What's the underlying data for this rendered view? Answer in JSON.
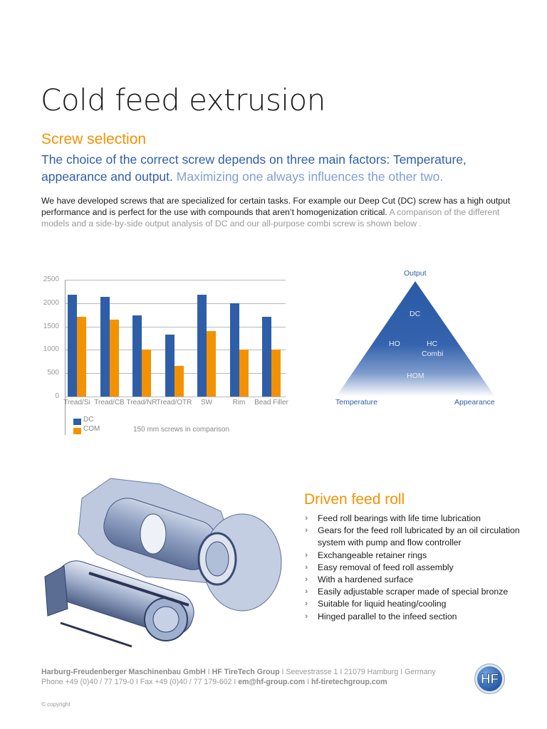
{
  "page": {
    "title": "Cold feed extrusion",
    "subtitle": "Screw selection",
    "lead_strong": "The choice of the correct screw depends on three main factors: Temperature, appearance and output.",
    "lead_light": "Maximizing one always influences the other two.",
    "body_dark": "We have developed screws that are specialized for certain tasks. For example our Deep Cut (DC) screw has a high output performance and is perfect for the use with compounds that aren’t homogenization critical.",
    "body_gray": "A comparison of the different models and a side-by-side output analysis of DC and our all-purpose combi screw is shown below ."
  },
  "chart_data": {
    "type": "bar",
    "title": "",
    "note": "150 mm screws in comparison",
    "xlabel": "",
    "ylabel": "",
    "ylim": [
      0,
      2500
    ],
    "yticks": [
      0,
      500,
      1000,
      1500,
      2000,
      2500
    ],
    "grid": true,
    "legend_position": "bottom-left",
    "categories": [
      "Tread/Si",
      "Tread/CB",
      "Tread/NR",
      "Tread/OTR",
      "SW",
      "Rim",
      "Bead Filler"
    ],
    "series": [
      {
        "name": "DC",
        "color": "#2f5ea8",
        "values": [
          2180,
          2130,
          1740,
          1320,
          2180,
          1990,
          1710
        ]
      },
      {
        "name": "COM",
        "color": "#f39200",
        "values": [
          1710,
          1640,
          1000,
          660,
          1400,
          1000,
          1000
        ]
      }
    ]
  },
  "triangle": {
    "top": "Output",
    "left": "Temperature",
    "right": "Appearance",
    "inner": {
      "dc": "DC",
      "ho": "HO",
      "hc": "HC",
      "combi": "Combi",
      "hom": "HOM"
    }
  },
  "feed_roll": {
    "title": "Driven feed roll",
    "bullet_icon": "double-chevron-right-icon",
    "items": [
      "Feed roll bearings with life time lubrication",
      "Gears for the feed roll lubricated by an oil circulation system with pump and flow controller",
      "Exchangeable retainer rings",
      "Easy removal of feed roll assembly",
      "With a hardened surface",
      "Easily adjustable scraper made of special bronze",
      "Suitable for liquid heating/cooling",
      "Hinged parallel to the infeed section"
    ]
  },
  "footer": {
    "company": "Harburg-Freudenberger Maschinenbau GmbH",
    "group": "HF TireTech Group",
    "address": "Seevestrasse 1",
    "city": "21079 Hamburg",
    "country": "Germany",
    "phone": "Phone +49 (0)40 / 77 179-0",
    "fax": "Fax +49 (0)40 / 77 179-602",
    "email": "em@hf-group.com",
    "web": "hf-tiretechgroup.com",
    "sep": " I ",
    "copyright": "© copyright",
    "logo_text": "HF"
  },
  "colors": {
    "orange": "#f39200",
    "blue": "#2f5ea8",
    "light_blue": "#7e9fd3"
  }
}
